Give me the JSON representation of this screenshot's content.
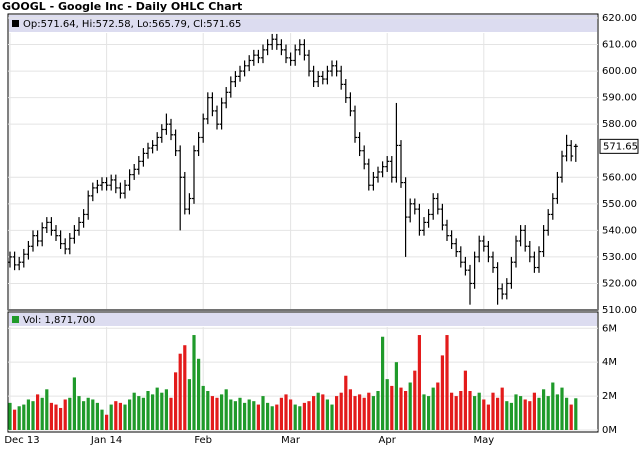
{
  "chart_data": [
    {
      "type": "ohlc",
      "title": "GOOGL - Google Inc - Daily OHLC Chart",
      "legend": "Op:571.64, Hi:572.58, Lo:565.79, Cl:571.65",
      "color": "#000000",
      "grid": true,
      "ylim": [
        510,
        620
      ],
      "yticks": [
        {
          "value": 510,
          "label": "510.00"
        },
        {
          "value": 520,
          "label": "520.00"
        },
        {
          "value": 530,
          "label": "530.00"
        },
        {
          "value": 540,
          "label": "540.00"
        },
        {
          "value": 550,
          "label": "550.00"
        },
        {
          "value": 560,
          "label": "560.00"
        },
        {
          "value": 580,
          "label": "580.00"
        },
        {
          "value": 590,
          "label": "590.00"
        },
        {
          "value": 600,
          "label": "600.00"
        },
        {
          "value": 610,
          "label": "610.00"
        },
        {
          "value": 620,
          "label": "620.00"
        }
      ],
      "open": [
        528,
        530,
        527,
        528,
        531,
        534,
        538,
        536,
        541,
        543,
        540,
        538,
        535,
        533,
        537,
        540,
        543,
        546,
        553,
        556,
        557,
        558,
        557,
        559,
        556,
        554,
        557,
        561,
        563,
        566,
        569,
        571,
        572,
        575,
        578,
        580,
        576,
        570,
        560,
        548,
        552,
        570,
        575,
        582,
        590,
        585,
        580,
        588,
        592,
        596,
        598,
        600,
        602,
        604,
        606,
        605,
        608,
        610,
        612,
        610,
        608,
        605,
        604,
        608,
        610,
        606,
        600,
        596,
        598,
        597,
        600,
        602,
        600,
        595,
        590,
        585,
        575,
        570,
        565,
        557,
        560,
        562,
        564,
        566,
        560,
        572,
        558,
        545,
        550,
        548,
        540,
        543,
        546,
        552,
        548,
        542,
        538,
        535,
        532,
        528,
        525,
        520,
        530,
        536,
        534,
        530,
        526,
        518,
        516,
        520,
        528,
        536,
        540,
        534,
        530,
        526,
        532,
        540,
        546,
        552,
        560,
        568,
        572,
        571.64
      ],
      "high": [
        532,
        532,
        530,
        533,
        536,
        540,
        540,
        543,
        545,
        545,
        542,
        540,
        537,
        539,
        542,
        545,
        548,
        555,
        558,
        559,
        560,
        560,
        561,
        561,
        558,
        559,
        563,
        565,
        568,
        571,
        573,
        574,
        577,
        580,
        584,
        582,
        578,
        572,
        562,
        554,
        572,
        577,
        584,
        592,
        592,
        587,
        590,
        594,
        598,
        600,
        602,
        604,
        606,
        608,
        608,
        610,
        612,
        614,
        614,
        612,
        610,
        607,
        610,
        612,
        612,
        608,
        602,
        600,
        600,
        602,
        604,
        604,
        602,
        597,
        592,
        587,
        577,
        572,
        567,
        562,
        564,
        566,
        568,
        568,
        588,
        574,
        560,
        552,
        552,
        550,
        545,
        548,
        554,
        554,
        550,
        544,
        540,
        537,
        534,
        530,
        527,
        532,
        538,
        538,
        536,
        532,
        528,
        520,
        522,
        530,
        538,
        542,
        542,
        536,
        532,
        534,
        542,
        548,
        554,
        562,
        570,
        576,
        574,
        572.58
      ],
      "low": [
        526,
        525,
        525,
        526,
        529,
        532,
        534,
        534,
        539,
        538,
        536,
        533,
        531,
        531,
        535,
        538,
        541,
        544,
        551,
        554,
        555,
        555,
        555,
        554,
        552,
        552,
        555,
        559,
        561,
        564,
        567,
        569,
        570,
        573,
        576,
        574,
        568,
        540,
        546,
        546,
        550,
        568,
        573,
        580,
        583,
        578,
        578,
        586,
        590,
        594,
        596,
        598,
        600,
        602,
        603,
        603,
        606,
        608,
        608,
        606,
        603,
        602,
        602,
        606,
        604,
        598,
        594,
        594,
        595,
        595,
        598,
        598,
        593,
        588,
        583,
        573,
        568,
        563,
        555,
        555,
        558,
        560,
        562,
        558,
        558,
        556,
        530,
        543,
        546,
        538,
        538,
        541,
        544,
        546,
        540,
        536,
        533,
        530,
        526,
        523,
        512,
        518,
        528,
        532,
        528,
        524,
        512,
        514,
        514,
        518,
        526,
        534,
        532,
        528,
        524,
        524,
        530,
        538,
        544,
        550,
        558,
        566,
        566,
        565.79
      ],
      "close": [
        530,
        527,
        528,
        531,
        534,
        538,
        536,
        541,
        543,
        540,
        538,
        535,
        533,
        537,
        540,
        543,
        546,
        553,
        556,
        557,
        558,
        557,
        559,
        556,
        554,
        557,
        561,
        563,
        566,
        569,
        571,
        572,
        575,
        578,
        580,
        576,
        570,
        560,
        548,
        552,
        570,
        575,
        582,
        590,
        585,
        580,
        588,
        592,
        596,
        598,
        600,
        602,
        604,
        606,
        605,
        608,
        610,
        612,
        610,
        608,
        605,
        604,
        608,
        610,
        606,
        600,
        596,
        598,
        597,
        600,
        602,
        600,
        595,
        590,
        585,
        575,
        570,
        565,
        557,
        560,
        562,
        564,
        566,
        560,
        572,
        558,
        545,
        550,
        548,
        540,
        543,
        546,
        552,
        548,
        542,
        538,
        535,
        532,
        528,
        525,
        520,
        530,
        536,
        534,
        530,
        526,
        518,
        516,
        520,
        528,
        536,
        540,
        534,
        530,
        526,
        532,
        540,
        546,
        552,
        560,
        568,
        572,
        568,
        571.65
      ]
    },
    {
      "type": "bar",
      "legend": "Vol: 1,871,700",
      "up_color": "#1f9a2a",
      "down_color": "#e31b1b",
      "grid": true,
      "ylim": [
        0,
        6900000
      ],
      "yticks": [
        {
          "value": 0,
          "label": "0M"
        },
        {
          "value": 2000000,
          "label": "2M"
        },
        {
          "value": 4000000,
          "label": "4M"
        },
        {
          "value": 6000000,
          "label": "6M"
        }
      ],
      "categories": [
        "Dec 13",
        null,
        null,
        null,
        null,
        null,
        null,
        null,
        null,
        null,
        null,
        null,
        null,
        null,
        null,
        null,
        null,
        null,
        null,
        null,
        null,
        "Jan 14",
        null,
        null,
        null,
        null,
        null,
        null,
        null,
        null,
        null,
        null,
        null,
        null,
        null,
        null,
        null,
        null,
        null,
        null,
        null,
        null,
        "Feb",
        null,
        null,
        null,
        null,
        null,
        null,
        null,
        null,
        null,
        null,
        null,
        null,
        null,
        null,
        null,
        null,
        null,
        null,
        "Mar",
        null,
        null,
        null,
        null,
        null,
        null,
        null,
        null,
        null,
        null,
        null,
        null,
        null,
        null,
        null,
        null,
        null,
        null,
        null,
        null,
        "Apr",
        null,
        null,
        null,
        null,
        null,
        null,
        null,
        null,
        null,
        null,
        null,
        null,
        null,
        null,
        null,
        null,
        null,
        null,
        null,
        null,
        "May",
        null,
        null,
        null,
        null,
        null,
        null,
        null,
        null,
        null,
        null,
        null,
        null,
        null,
        null,
        null,
        null,
        null,
        null,
        null,
        null
      ],
      "values": [
        1600000,
        1200000,
        1400000,
        1500000,
        1800000,
        1700000,
        2100000,
        1900000,
        2400000,
        1600000,
        1500000,
        1300000,
        1800000,
        1900000,
        3100000,
        2000000,
        1700000,
        1900000,
        1800000,
        1600000,
        1200000,
        900000,
        1500000,
        1700000,
        1600000,
        1500000,
        1800000,
        2200000,
        2000000,
        1900000,
        2300000,
        2100000,
        2500000,
        2200000,
        2400000,
        1900000,
        3400000,
        4500000,
        5000000,
        3000000,
        5600000,
        4200000,
        2600000,
        2300000,
        2000000,
        1900000,
        2100000,
        2400000,
        1800000,
        1700000,
        1900000,
        1600000,
        1800000,
        1700000,
        1500000,
        2000000,
        1600000,
        1400000,
        1500000,
        1900000,
        2100000,
        1800000,
        1500000,
        1400000,
        1600000,
        1700000,
        2000000,
        2200000,
        2100000,
        1800000,
        1500000,
        2000000,
        2200000,
        3200000,
        2400000,
        2000000,
        2100000,
        1900000,
        2200000,
        2000000,
        2300000,
        5500000,
        3000000,
        2600000,
        4000000,
        2500000,
        2300000,
        2800000,
        3500000,
        5600000,
        2100000,
        2000000,
        2500000,
        2800000,
        4400000,
        5600000,
        2200000,
        2000000,
        2300000,
        3500000,
        2300000,
        2000000,
        2200000,
        1800000,
        1500000,
        2200000,
        1900000,
        2500000,
        1700000,
        1600000,
        2100000,
        2000000,
        1800000,
        1700000,
        2200000,
        1900000,
        2400000,
        2000000,
        2800000,
        2100000,
        2500000,
        1900000,
        1500000,
        1871700
      ]
    }
  ]
}
